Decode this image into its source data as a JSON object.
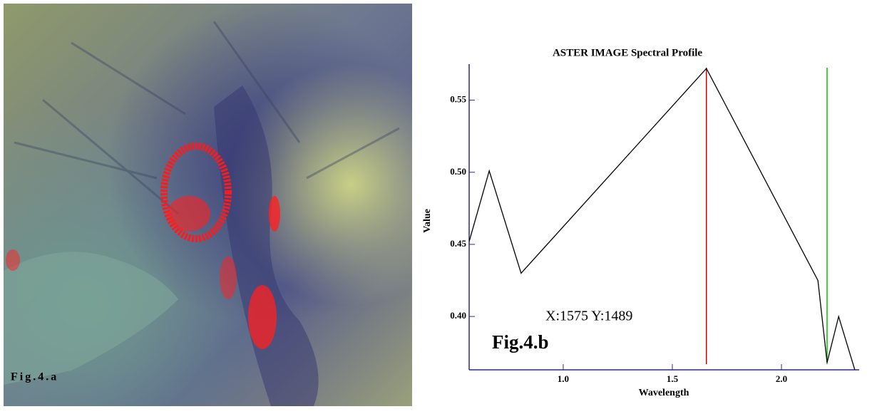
{
  "figure_a": {
    "label": "Fig.4.a"
  },
  "chart_data": {
    "type": "line",
    "title": "ASTER IMAGE Spectral Profile",
    "x_label": "Wavelength",
    "y_label": "Value",
    "annotations": [
      "X:1575  Y:1489",
      "Fig.4.b"
    ],
    "x": [
      0.569,
      0.661,
      0.807,
      1.656,
      2.167,
      2.209,
      2.262,
      2.336
    ],
    "series": [
      {
        "color": "#000000",
        "values": [
          0.452,
          0.501,
          0.43,
          0.572,
          0.425,
          0.368,
          0.4,
          0.363
        ]
      }
    ],
    "markers": [
      {
        "x": 1.656,
        "color": "#d00000"
      },
      {
        "x": 2.209,
        "color": "#00c000"
      }
    ],
    "xlim": [
      0.569,
      2.356
    ],
    "ylim": [
      0.363,
      0.575
    ],
    "xticks": [
      {
        "value": 1.0,
        "label": "1.0"
      },
      {
        "value": 1.5,
        "label": "1.5"
      },
      {
        "value": 2.0,
        "label": "2.0"
      }
    ],
    "yticks": [
      {
        "value": 0.4,
        "label": "0.40"
      },
      {
        "value": 0.45,
        "label": "0.45"
      },
      {
        "value": 0.5,
        "label": "0.50"
      },
      {
        "value": 0.55,
        "label": "0.55"
      }
    ],
    "axis_color": "#2a2a8a"
  }
}
